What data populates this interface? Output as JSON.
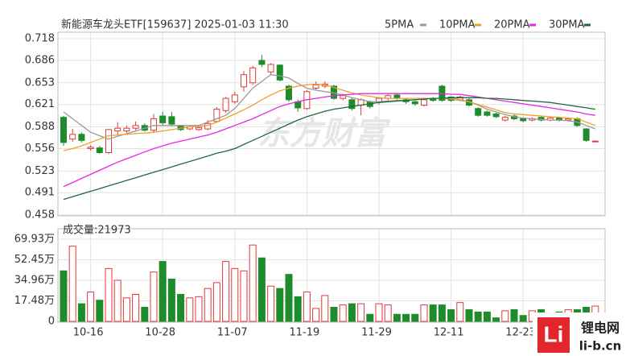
{
  "chart_data": [
    {
      "type": "candlestick",
      "title": "新能源车龙头ETF[159637] 2025-01-03 11:30",
      "watermark": "东方财富",
      "categories": [
        null,
        null,
        null,
        "10-16",
        null,
        null,
        null,
        null,
        null,
        null,
        null,
        "10-28",
        null,
        null,
        null,
        null,
        null,
        null,
        null,
        "11-07",
        null,
        null,
        null,
        null,
        null,
        null,
        null,
        "11-19",
        null,
        null,
        null,
        null,
        null,
        null,
        null,
        "11-29",
        null,
        null,
        null,
        null,
        null,
        null,
        null,
        "12-11",
        null,
        null,
        null,
        null,
        null,
        null,
        null,
        "12-23",
        null,
        null,
        null,
        null,
        null,
        null,
        null,
        null
      ],
      "open": [
        0.602,
        0.57,
        0.577,
        0.556,
        0.557,
        0.55,
        0.582,
        0.582,
        0.586,
        0.59,
        0.583,
        0.604,
        0.603,
        0.59,
        0.585,
        0.584,
        0.585,
        0.596,
        0.612,
        0.625,
        0.647,
        0.653,
        0.686,
        0.669,
        0.679,
        0.648,
        0.625,
        0.615,
        0.645,
        0.648,
        0.648,
        0.63,
        0.628,
        0.62,
        0.625,
        0.624,
        0.63,
        0.635,
        0.628,
        0.625,
        0.62,
        0.63,
        0.648,
        0.632,
        0.628,
        0.628,
        0.615,
        0.61,
        0.607,
        0.598,
        0.604,
        0.6,
        0.598,
        0.602,
        0.598,
        0.601,
        0.598,
        0.6,
        0.585,
        0.567
      ],
      "high": [
        0.604,
        0.585,
        0.58,
        0.561,
        0.56,
        0.585,
        0.595,
        0.59,
        0.596,
        0.593,
        0.607,
        0.61,
        0.61,
        0.591,
        0.59,
        0.589,
        0.598,
        0.617,
        0.632,
        0.64,
        0.67,
        0.678,
        0.694,
        0.682,
        0.68,
        0.65,
        0.628,
        0.642,
        0.655,
        0.655,
        0.65,
        0.637,
        0.63,
        0.63,
        0.627,
        0.632,
        0.636,
        0.637,
        0.63,
        0.627,
        0.63,
        0.632,
        0.65,
        0.633,
        0.634,
        0.63,
        0.617,
        0.612,
        0.609,
        0.604,
        0.606,
        0.602,
        0.602,
        0.604,
        0.603,
        0.603,
        0.602,
        0.602,
        0.586,
        0.568
      ],
      "low": [
        0.56,
        0.566,
        0.565,
        0.553,
        0.548,
        0.548,
        0.576,
        0.579,
        0.583,
        0.581,
        0.58,
        0.59,
        0.589,
        0.582,
        0.583,
        0.582,
        0.583,
        0.594,
        0.609,
        0.622,
        0.64,
        0.65,
        0.676,
        0.665,
        0.655,
        0.625,
        0.61,
        0.613,
        0.643,
        0.645,
        0.628,
        0.627,
        0.612,
        0.605,
        0.615,
        0.621,
        0.627,
        0.628,
        0.622,
        0.619,
        0.618,
        0.625,
        0.625,
        0.625,
        0.626,
        0.618,
        0.603,
        0.603,
        0.601,
        0.596,
        0.598,
        0.595,
        0.596,
        0.596,
        0.596,
        0.596,
        0.596,
        0.588,
        0.566,
        0.566
      ],
      "close": [
        0.565,
        0.577,
        0.568,
        0.558,
        0.55,
        0.584,
        0.586,
        0.586,
        0.59,
        0.583,
        0.6,
        0.594,
        0.592,
        0.584,
        0.588,
        0.587,
        0.593,
        0.614,
        0.63,
        0.635,
        0.665,
        0.675,
        0.68,
        0.68,
        0.657,
        0.628,
        0.616,
        0.64,
        0.65,
        0.651,
        0.63,
        0.634,
        0.615,
        0.628,
        0.618,
        0.63,
        0.634,
        0.63,
        0.625,
        0.622,
        0.628,
        0.627,
        0.627,
        0.627,
        0.632,
        0.62,
        0.605,
        0.605,
        0.603,
        0.602,
        0.6,
        0.597,
        0.6,
        0.598,
        0.601,
        0.598,
        0.6,
        0.59,
        0.568,
        0.567
      ],
      "colors": {
        "up": "#e23a3a",
        "down": "#1e8c2c"
      },
      "series": [
        {
          "name": "5PMA",
          "color": "#9a9a9a",
          "values": [
            0.61,
            0.6,
            0.59,
            0.58,
            0.575,
            0.57,
            0.574,
            0.578,
            0.582,
            0.586,
            0.59,
            0.59,
            0.59,
            0.59,
            0.59,
            0.59,
            0.595,
            0.6,
            0.605,
            0.615,
            0.63,
            0.645,
            0.655,
            0.665,
            0.663,
            0.66,
            0.652,
            0.645,
            0.642,
            0.64,
            0.638,
            0.635,
            0.631,
            0.628,
            0.625,
            0.625,
            0.626,
            0.627,
            0.627,
            0.628,
            0.629,
            0.63,
            0.63,
            0.629,
            0.627,
            0.625,
            0.62,
            0.614,
            0.61,
            0.606,
            0.603,
            0.601,
            0.6,
            0.599,
            0.598,
            0.598,
            0.597,
            0.595,
            0.59,
            0.585
          ]
        },
        {
          "name": "10PMA",
          "color": "#f0a028",
          "values": [
            0.553,
            0.556,
            0.56,
            0.565,
            0.57,
            0.575,
            0.576,
            0.577,
            0.578,
            0.579,
            0.58,
            0.582,
            0.584,
            0.586,
            0.588,
            0.589,
            0.59,
            0.595,
            0.601,
            0.607,
            0.613,
            0.62,
            0.628,
            0.635,
            0.641,
            0.645,
            0.648,
            0.65,
            0.651,
            0.65,
            0.646,
            0.642,
            0.638,
            0.635,
            0.633,
            0.631,
            0.63,
            0.63,
            0.63,
            0.63,
            0.63,
            0.63,
            0.63,
            0.63,
            0.628,
            0.625,
            0.621,
            0.617,
            0.613,
            0.609,
            0.607,
            0.606,
            0.605,
            0.604,
            0.603,
            0.602,
            0.601,
            0.6,
            0.595,
            0.59
          ]
        },
        {
          "name": "20PMA",
          "color": "#e626e6",
          "values": [
            0.5,
            0.506,
            0.512,
            0.518,
            0.524,
            0.53,
            0.536,
            0.541,
            0.546,
            0.551,
            0.556,
            0.56,
            0.564,
            0.567,
            0.57,
            0.573,
            0.576,
            0.58,
            0.585,
            0.59,
            0.595,
            0.6,
            0.606,
            0.612,
            0.618,
            0.622,
            0.625,
            0.628,
            0.63,
            0.632,
            0.634,
            0.635,
            0.636,
            0.637,
            0.637,
            0.637,
            0.637,
            0.637,
            0.637,
            0.637,
            0.637,
            0.637,
            0.637,
            0.636,
            0.636,
            0.634,
            0.632,
            0.63,
            0.628,
            0.626,
            0.624,
            0.622,
            0.62,
            0.618,
            0.616,
            0.614,
            0.612,
            0.61,
            0.607,
            0.605
          ]
        },
        {
          "name": "30PMA",
          "color": "#1d6b3c",
          "values": [
            0.481,
            0.485,
            0.489,
            0.493,
            0.497,
            0.501,
            0.505,
            0.509,
            0.513,
            0.517,
            0.521,
            0.525,
            0.529,
            0.533,
            0.537,
            0.541,
            0.545,
            0.549,
            0.552,
            0.556,
            0.562,
            0.568,
            0.574,
            0.58,
            0.586,
            0.592,
            0.598,
            0.603,
            0.607,
            0.611,
            0.614,
            0.616,
            0.618,
            0.62,
            0.622,
            0.624,
            0.625,
            0.626,
            0.627,
            0.628,
            0.629,
            0.63,
            0.63,
            0.631,
            0.631,
            0.631,
            0.631,
            0.63,
            0.63,
            0.629,
            0.628,
            0.627,
            0.626,
            0.625,
            0.624,
            0.622,
            0.62,
            0.618,
            0.616,
            0.614
          ]
        }
      ],
      "ylim": [
        0.458,
        0.718
      ],
      "yticks": [
        0.458,
        0.491,
        0.523,
        0.556,
        0.588,
        0.621,
        0.653,
        0.686,
        0.718
      ],
      "grid": true
    },
    {
      "type": "bar",
      "title": "成交量:21973",
      "values": [
        43,
        64,
        15,
        25,
        18,
        45,
        35,
        20,
        23,
        12,
        42,
        51,
        36,
        23,
        20,
        21,
        28,
        33,
        51,
        45,
        43,
        65,
        54,
        30,
        28,
        40,
        21,
        25,
        11,
        22,
        12,
        14,
        15,
        15,
        6,
        15,
        14,
        6,
        6,
        6,
        14,
        14,
        14,
        10,
        16,
        10,
        8,
        8,
        3,
        9,
        10,
        5,
        9,
        10,
        6,
        8,
        10,
        10,
        12,
        13
      ],
      "ylim": [
        0,
        69.93
      ],
      "yticks": [
        0,
        {
          "value": 17.48,
          "label": "17.48万"
        },
        {
          "value": 34.96,
          "label": "34.96万"
        },
        {
          "value": 52.45,
          "label": "52.45万"
        },
        {
          "value": 69.93,
          "label": "69.93万"
        }
      ],
      "grid": true
    }
  ],
  "logo": {
    "mark": "Li",
    "name": "锂电网",
    "url": "li-b.cn"
  }
}
